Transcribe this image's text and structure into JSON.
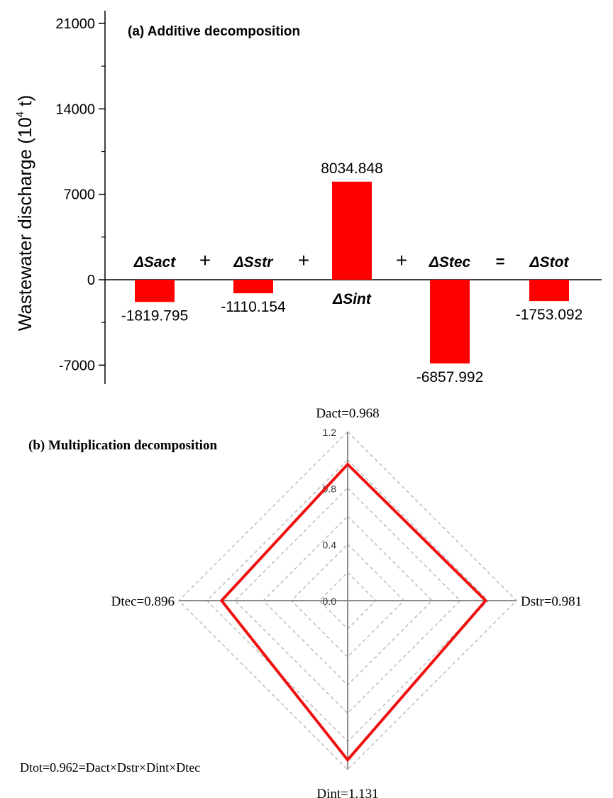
{
  "colors": {
    "bar": "#ff0000",
    "radar_line": "#ee1111",
    "axis": "#000000",
    "grid": "#b4b4b4",
    "spoke": "#8c8c8c"
  },
  "chart_data": [
    {
      "type": "bar",
      "title": "(a) Additive decomposition",
      "ylabel": "Wastewater discharge (10",
      "ylabel_sup": "4",
      "ylabel_unit": " t)",
      "ylim": [
        -8500,
        22500
      ],
      "yticks": [
        -7000,
        0,
        7000,
        14000,
        21000
      ],
      "ytick_labels": [
        "-7000",
        "0",
        "7000",
        "14000",
        "21000"
      ],
      "categories": [
        "ΔSact",
        "ΔSstr",
        "ΔSint",
        "ΔStec",
        "ΔStot"
      ],
      "values": [
        -1819.795,
        -1110.154,
        8034.848,
        -6857.992,
        -1753.092
      ],
      "value_labels": [
        "-1819.795",
        "-1110.154",
        "8034.848",
        "-6857.992",
        "-1753.092"
      ],
      "operators": [
        "+",
        "+",
        "+",
        "="
      ]
    },
    {
      "type": "radar",
      "title": "(b) Multiplication decomposition",
      "axes": [
        "Dact",
        "Dstr",
        "Dint",
        "Dtec"
      ],
      "axis_labels": [
        "Dact=0.968",
        "Dstr=0.981",
        "Dint=1.131",
        "Dtec=0.896"
      ],
      "values": [
        0.968,
        0.981,
        1.131,
        0.896
      ],
      "rmax": 1.2,
      "rings": [
        0.4,
        0.8,
        1.2
      ],
      "ring_step": 0.2,
      "tick_labels": [
        "0.0",
        "0.4",
        "0.8",
        "1.2"
      ],
      "formula": "Dtot=0.962=Dact×Dstr×Dint×Dtec"
    }
  ]
}
